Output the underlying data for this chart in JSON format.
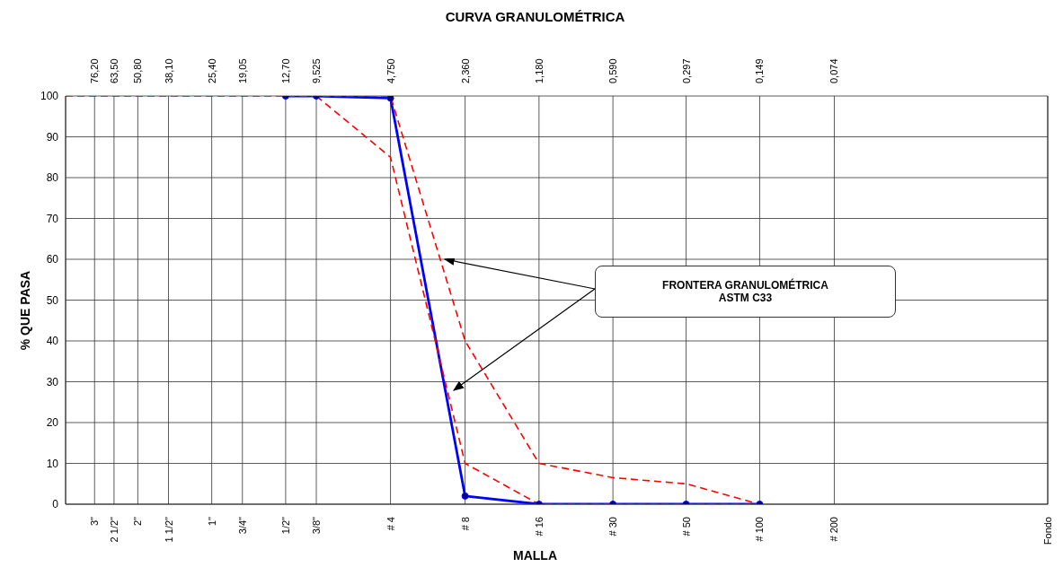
{
  "chart_data": {
    "type": "line",
    "title": "CURVA GRANULOMÉTRICA",
    "xlabel": "MALLA",
    "ylabel": "% QUE PASA",
    "annotations": [
      "FRONTERA GRANULOMÉTRICA\nASTM C33",
      "3\"",
      "2 1/2\"",
      "2\"",
      "1 1/2\"",
      "1\"",
      "3/4\"",
      "1/2\"",
      "3/8\"",
      "# 4",
      "# 8",
      "# 16",
      "# 30",
      "# 50",
      "# 100",
      "# 200",
      "Fondo"
    ],
    "log": "x",
    "grid": true,
    "xlim": [
      100,
      0.01
    ],
    "xticks": [
      {
        "value": 76.2,
        "label": "76,20"
      },
      {
        "value": 63.5,
        "label": "63,50"
      },
      {
        "value": 50.8,
        "label": "50,80"
      },
      {
        "value": 38.1,
        "label": "38,10"
      },
      {
        "value": 25.4,
        "label": "25,40"
      },
      {
        "value": 19.05,
        "label": "19,05"
      },
      {
        "value": 12.7,
        "label": "12,70"
      },
      {
        "value": 9.525,
        "label": "9,525"
      },
      {
        "value": 4.75,
        "label": "4,750"
      },
      {
        "value": 2.36,
        "label": "2,360"
      },
      {
        "value": 1.18,
        "label": "1,180"
      },
      {
        "value": 0.59,
        "label": "0,590"
      },
      {
        "value": 0.297,
        "label": "0,297"
      },
      {
        "value": 0.149,
        "label": "0,149"
      },
      {
        "value": 0.074,
        "label": "0,074"
      }
    ],
    "ylim": [
      0,
      100
    ],
    "yticks": [
      0,
      10,
      20,
      30,
      40,
      50,
      60,
      70,
      80,
      90,
      100
    ],
    "series": [
      {
        "color": "#0000ff",
        "line_style": "solid",
        "marker": "circle",
        "x": [
          12.7,
          9.525,
          4.75,
          2.36,
          1.18,
          0.59,
          0.297,
          0.149
        ],
        "values": [
          100,
          100,
          99.5,
          2,
          0,
          0,
          0,
          0
        ]
      },
      {
        "color": "#ff0000",
        "line_style": "dashed",
        "marker": "none",
        "x": [
          100,
          4.75,
          2.36,
          1.18,
          0.59,
          0.297,
          0.149
        ],
        "values": [
          100,
          100,
          40,
          10,
          6.5,
          5,
          0
        ]
      },
      {
        "color": "#ff0000",
        "line_style": "dashed",
        "marker": "none",
        "x": [
          9.525,
          4.75,
          2.36,
          1.18,
          0.149
        ],
        "values": [
          100,
          85,
          10,
          0,
          0
        ]
      }
    ]
  }
}
